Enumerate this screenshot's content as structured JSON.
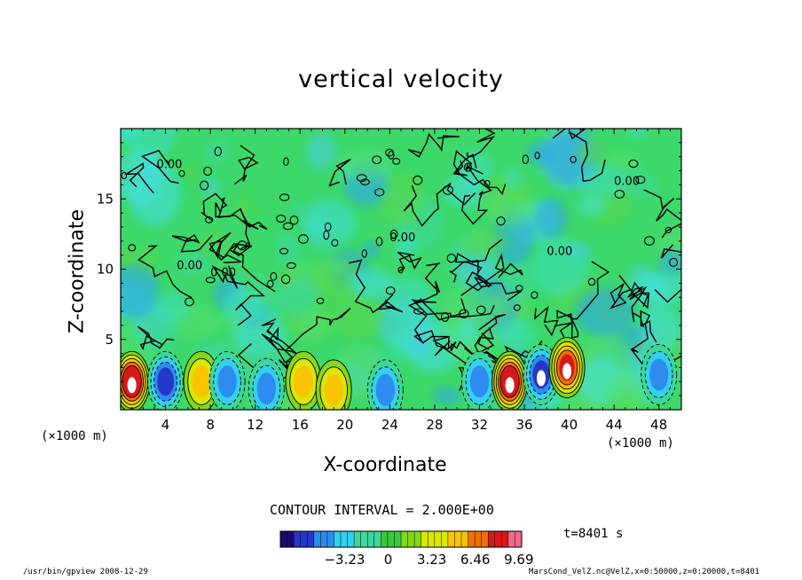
{
  "chart_data": {
    "type": "heatmap",
    "title": "vertical velocity",
    "xlabel": "X-coordinate",
    "ylabel": "Z-coordinate",
    "x_unit_label": "(×1000 m)",
    "x_ticks": [
      4,
      8,
      12,
      16,
      20,
      24,
      28,
      32,
      36,
      40,
      44,
      48
    ],
    "y_ticks": [
      5,
      10,
      15
    ],
    "xlim": [
      0,
      50
    ],
    "ylim": [
      0,
      20
    ],
    "contour_label": "0.00",
    "contour_interval": "CONTOUR INTERVAL = 2.000E+00",
    "colorbar": {
      "ticks": [
        "−3.23",
        "0",
        "3.23",
        "6.46",
        "9.69"
      ],
      "tick_values": [
        -3.23,
        0,
        3.23,
        6.46,
        9.69
      ],
      "range": [
        -8.0,
        9.9
      ],
      "colors": [
        "#1a0a6e",
        "#2638c8",
        "#2e8cf0",
        "#33d0f0",
        "#3cd89a",
        "#3cc83c",
        "#84d818",
        "#d8e800",
        "#f8c400",
        "#f07000",
        "#d81818",
        "#f06a8c"
      ]
    },
    "features": [
      {
        "kind": "updraft",
        "x": 1.0,
        "z": 2.0,
        "value": 9.0
      },
      {
        "kind": "downdraft",
        "x": 4.0,
        "z": 2.0,
        "value": -6.0
      },
      {
        "kind": "updraft",
        "x": 7.2,
        "z": 2.0,
        "value": 5.0
      },
      {
        "kind": "downdraft",
        "x": 9.5,
        "z": 2.0,
        "value": -5.0
      },
      {
        "kind": "downdraft",
        "x": 13.0,
        "z": 1.5,
        "value": -5.0
      },
      {
        "kind": "updraft",
        "x": 16.3,
        "z": 2.0,
        "value": 5.5
      },
      {
        "kind": "updraft",
        "x": 19.0,
        "z": 1.4,
        "value": 5.0
      },
      {
        "kind": "downdraft",
        "x": 23.6,
        "z": 1.4,
        "value": -5.0
      },
      {
        "kind": "downdraft",
        "x": 32.0,
        "z": 2.0,
        "value": -5.0
      },
      {
        "kind": "updraft",
        "x": 34.7,
        "z": 2.0,
        "value": 9.0
      },
      {
        "kind": "downdraft",
        "x": 37.5,
        "z": 2.5,
        "value": -7.0
      },
      {
        "kind": "updraft",
        "x": 39.8,
        "z": 3.0,
        "value": 8.0
      },
      {
        "kind": "downdraft",
        "x": 48.0,
        "z": 2.5,
        "value": -5.0
      }
    ]
  },
  "annotations": {
    "time": "t=8401 s",
    "footer_left": "/usr/bin/gpview   2008-12-29",
    "footer_right": "MarsCond_VelZ.nc@VelZ,x=0:50000,z=0:20000,t=8401"
  }
}
